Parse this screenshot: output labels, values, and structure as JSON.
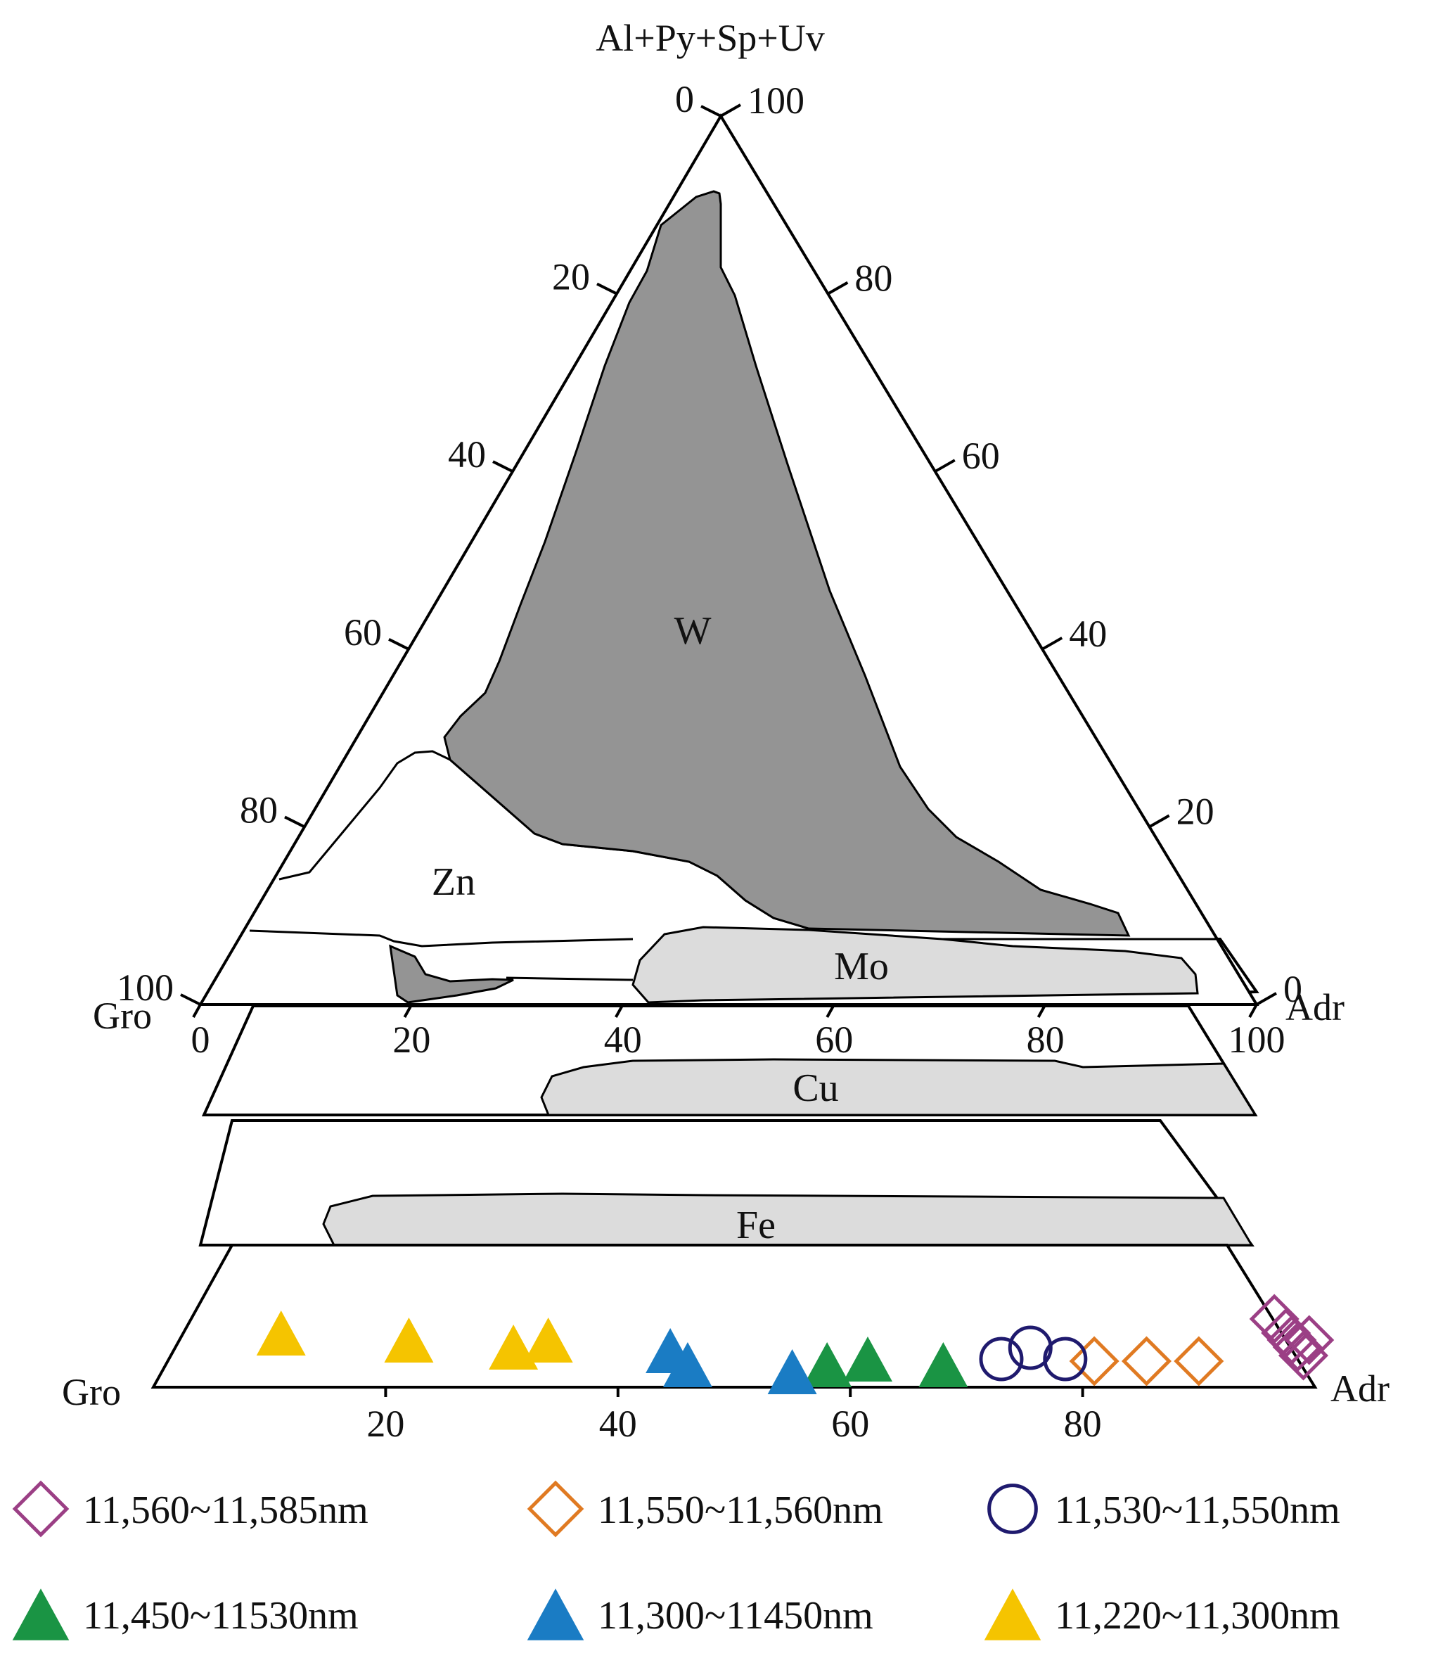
{
  "ternary": {
    "apex_label": "Al+Py+Sp+Uv",
    "left_label": "Gro",
    "right_label": "Adr",
    "left_edge_ticks": [
      "0",
      "20",
      "40",
      "60",
      "80",
      "100"
    ],
    "right_edge_ticks": [
      "100",
      "80",
      "60",
      "40",
      "20",
      "0"
    ],
    "base_ticks": [
      "0",
      "20",
      "40",
      "60",
      "80",
      "100"
    ]
  },
  "fields": {
    "w": "W",
    "zn": "Zn",
    "mo": "Mo",
    "cu": "Cu",
    "fe": "Fe"
  },
  "strip": {
    "left_label": "Gro",
    "right_label": "Adr",
    "ticks": [
      "20",
      "40",
      "60",
      "80"
    ]
  },
  "colors": {
    "w_field": "#949494",
    "light_field": "#dcdcdc",
    "purple": "#9b3f85",
    "orange": "#e07a22",
    "navy": "#1f1a6e",
    "green": "#1a9444",
    "blue": "#1a7cc4",
    "yellow": "#f5c400"
  },
  "legend": [
    {
      "label": "11,560~11,585nm",
      "marker": "diamond",
      "color": "#9b3f85"
    },
    {
      "label": "11,550~11,560nm",
      "marker": "diamond",
      "color": "#e07a22"
    },
    {
      "label": "11,530~11,550nm",
      "marker": "circle",
      "color": "#1f1a6e"
    },
    {
      "label": "11,450~11530nm",
      "marker": "triangle",
      "color": "#1a9444"
    },
    {
      "label": "11,300~11450nm",
      "marker": "triangle",
      "color": "#1a7cc4"
    },
    {
      "label": "11,220~11,300nm",
      "marker": "triangle",
      "color": "#f5c400"
    }
  ],
  "chart_data": {
    "type": "scatter",
    "x_axis": "Adr",
    "series": [
      {
        "name": "11,560~11,585nm",
        "marker": "diamond",
        "x": [
          96.5,
          97.5,
          98.0,
          98.5,
          99.0,
          99.5
        ]
      },
      {
        "name": "11,550~11,560nm",
        "marker": "diamond",
        "x": [
          81.0,
          85.5,
          90.0
        ]
      },
      {
        "name": "11,530~11,550nm",
        "marker": "circle",
        "x": [
          73.0,
          75.5,
          78.5
        ]
      },
      {
        "name": "11,450~11530nm",
        "marker": "triangle",
        "x": [
          58.0,
          61.5,
          68.0
        ]
      },
      {
        "name": "11,300~11450nm",
        "marker": "triangle",
        "x": [
          44.5,
          46.0,
          55.0
        ]
      },
      {
        "name": "11,220~11,300nm",
        "marker": "triangle",
        "x": [
          11.0,
          22.0,
          31.0,
          34.0
        ]
      }
    ]
  }
}
